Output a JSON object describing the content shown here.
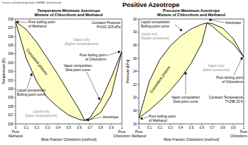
{
  "header": {
    "note": "Curves calculated by mod. UNIFAC (Dortmund)",
    "title": "Positive Azeotrope"
  },
  "chart_data": [
    {
      "type": "line",
      "title": "Temperature-Minimum Azeotrope",
      "subtitle": "Mixture of Chloroform and Methanol",
      "x_label": "Mole Fraction Chloroform [mol/mol]",
      "y_label": "Temperature [K]",
      "xlim": [
        0,
        1
      ],
      "ylim": [
        326,
        338
      ],
      "xticks": [
        0,
        0.1,
        0.2,
        0.3,
        0.4,
        0.5,
        0.6,
        0.7,
        0.8,
        0.9,
        1
      ],
      "yticks": [
        326,
        327,
        328,
        329,
        330,
        331,
        332,
        333,
        334,
        335,
        336,
        337,
        338
      ],
      "grid": false,
      "x": [
        0,
        0.1,
        0.2,
        0.3,
        0.4,
        0.5,
        0.6,
        0.65,
        0.7,
        0.8,
        0.9,
        1
      ],
      "series": [
        {
          "color": "#000000",
          "values": [
            337.7,
            333.5,
            330.8,
            329.0,
            327.9,
            327.0,
            326.5,
            326.4,
            326.5,
            327.3,
            329.3,
            334.3
          ]
        },
        {
          "color": "#000000",
          "values": [
            337.7,
            336.8,
            335.3,
            333.5,
            331.6,
            329.6,
            327.6,
            326.4,
            326.7,
            328.6,
            331.3,
            334.3
          ]
        }
      ],
      "annotations": [
        {
          "lines": [
            "Pure boiling point",
            "of Methanol"
          ]
        },
        {
          "lines": [
            "Constant Pressure",
            "P=101.325 kPa"
          ]
        },
        {
          "lines": [
            "Vapor only",
            "(higher temperatures)"
          ]
        },
        {
          "lines": [
            "Vapor composition",
            "Dew point curve"
          ]
        },
        {
          "lines": [
            "Coexistent phases"
          ]
        },
        {
          "lines": [
            "Pure boiling point",
            "of Chloroform"
          ]
        },
        {
          "lines": [
            "Liquid composition",
            "Boiling point curve"
          ]
        },
        {
          "lines": [
            "Liquid only",
            "(lower temperatures)"
          ]
        },
        {
          "lines": [
            "Azeotrope"
          ]
        },
        {
          "lines": [
            "Pure",
            "Methanol"
          ]
        },
        {
          "lines": [
            "Pure",
            "Chloroform"
          ]
        }
      ]
    },
    {
      "type": "line",
      "title": "Pressure-Maximum Azeotrope",
      "subtitle": "Mixture of Chloroform and Methanol",
      "x_label": "Mole Fraction Chloroform [mol/mol]",
      "y_label": "Pressure [kPa]",
      "xlim": [
        0,
        1
      ],
      "ylim": [
        16,
        32
      ],
      "xticks": [
        0,
        0.1,
        0.2,
        0.3,
        0.4,
        0.5,
        0.6,
        0.7,
        0.8,
        0.9,
        1
      ],
      "yticks": [
        16,
        18,
        20,
        22,
        24,
        26,
        28,
        30,
        32
      ],
      "grid": false,
      "x": [
        0,
        0.1,
        0.2,
        0.3,
        0.4,
        0.5,
        0.6,
        0.65,
        0.7,
        0.8,
        0.9,
        1
      ],
      "series": [
        {
          "color": "#000000",
          "values": [
            16.9,
            22.5,
            25.8,
            27.9,
            29.4,
            30.5,
            31.2,
            31.4,
            31.3,
            30.6,
            29.0,
            26.2
          ]
        },
        {
          "color": "#000000",
          "values": [
            16.9,
            18.1,
            19.5,
            21.1,
            23.0,
            25.3,
            28.3,
            31.4,
            30.9,
            29.5,
            28.2,
            26.2
          ]
        }
      ],
      "annotations": [
        {
          "lines": [
            "Constant Temperature",
            "T=298.15 K"
          ]
        },
        {
          "lines": [
            "Azeotrope"
          ]
        },
        {
          "lines": [
            "Liquid composition",
            "Boiling point curve"
          ]
        },
        {
          "lines": [
            "Liquid only",
            "(higher pressures)"
          ]
        },
        {
          "lines": [
            "Coexistent phases"
          ]
        },
        {
          "lines": [
            "Vapor composition",
            "Dew point curve"
          ]
        },
        {
          "lines": [
            "Vapor only",
            "(lower pressures)"
          ]
        },
        {
          "lines": [
            "Pure boiling point",
            "of Chloroform"
          ]
        },
        {
          "lines": [
            "Pure boiling point",
            "of Methanol"
          ]
        },
        {
          "lines": [
            "Pure",
            "Methanol"
          ]
        },
        {
          "lines": [
            "Pure",
            "Chloroform"
          ]
        }
      ]
    }
  ]
}
